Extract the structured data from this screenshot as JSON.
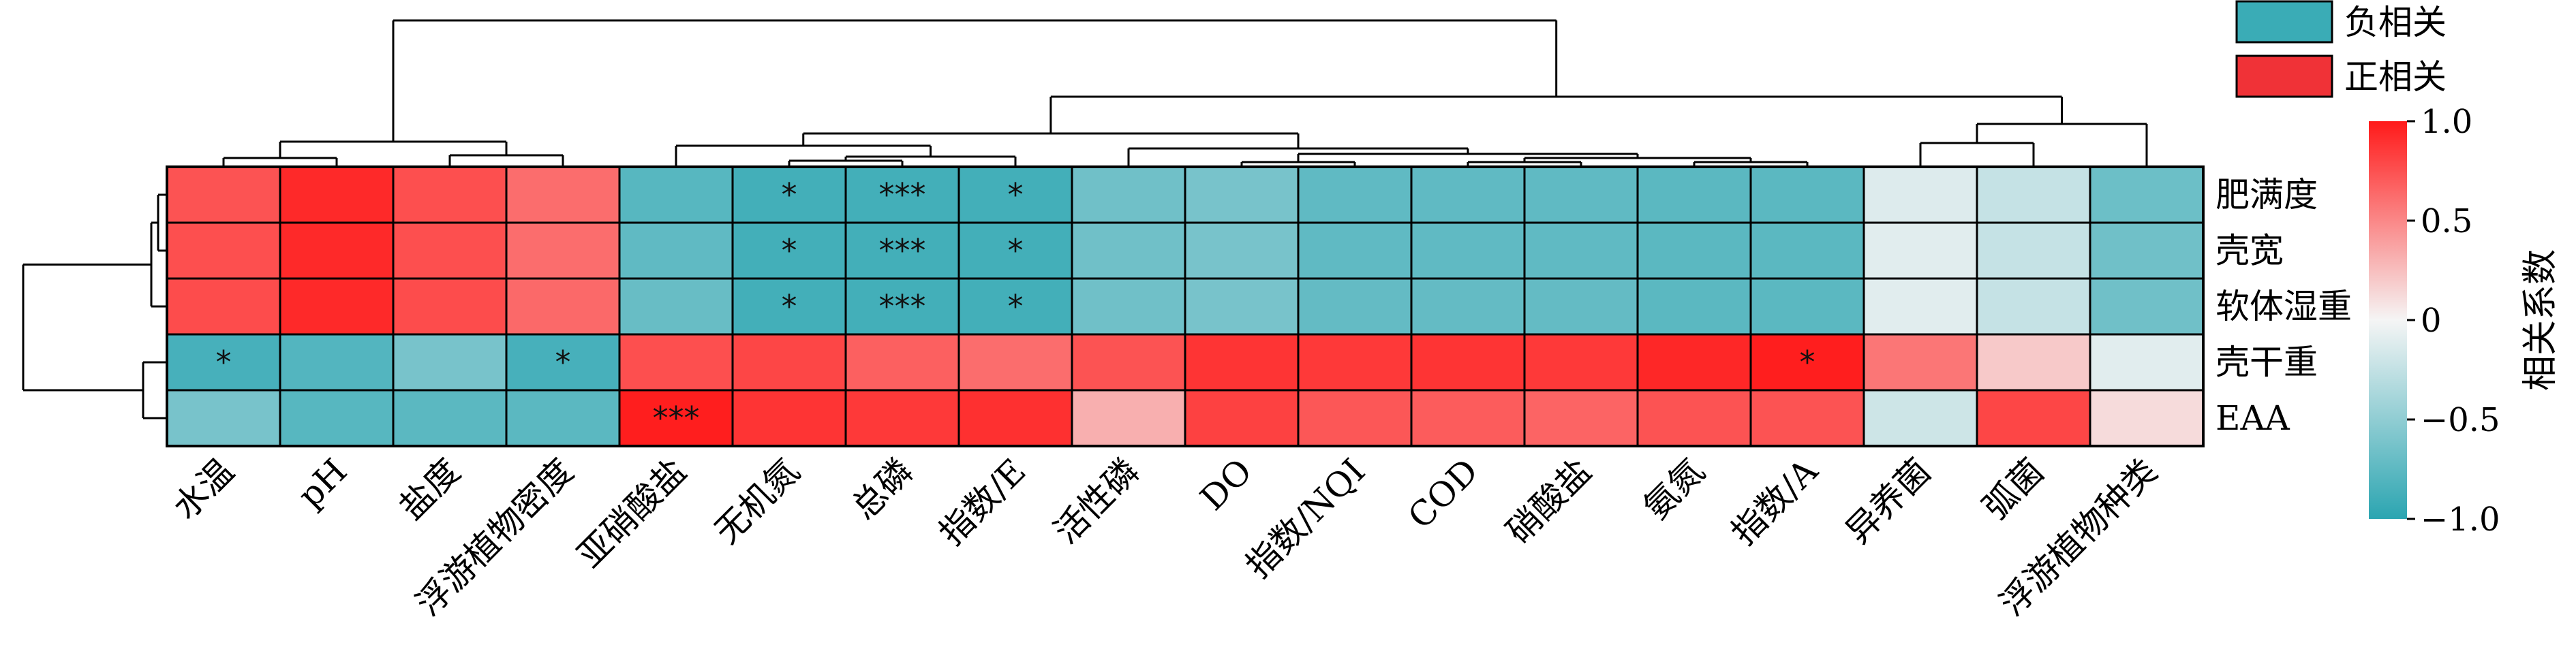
{
  "chart_data": {
    "type": "heatmap",
    "rows": [
      "肥满度",
      "壳宽",
      "软体湿重",
      "壳干重",
      "EAA"
    ],
    "columns": [
      "水温",
      "pH",
      "盐度",
      "浮游植物密度",
      "亚硝酸盐",
      "无机氮",
      "总磷",
      "指数/E",
      "活性磷",
      "DO",
      "指数/NQI",
      "COD",
      "硝酸盐",
      "氨氮",
      "指数/A",
      "异养菌",
      "弧菌",
      "浮游植物种类"
    ],
    "values": [
      [
        0.74,
        0.93,
        0.76,
        0.62,
        -0.78,
        -0.88,
        -0.88,
        -0.88,
        -0.66,
        -0.62,
        -0.74,
        -0.74,
        -0.74,
        -0.76,
        -0.76,
        -0.12,
        -0.24,
        -0.68
      ],
      [
        0.76,
        0.93,
        0.76,
        0.62,
        -0.74,
        -0.88,
        -0.88,
        -0.88,
        -0.66,
        -0.62,
        -0.74,
        -0.74,
        -0.74,
        -0.76,
        -0.76,
        -0.1,
        -0.24,
        -0.66
      ],
      [
        0.77,
        0.93,
        0.77,
        0.64,
        -0.7,
        -0.88,
        -0.88,
        -0.88,
        -0.66,
        -0.62,
        -0.72,
        -0.72,
        -0.72,
        -0.76,
        -0.76,
        -0.1,
        -0.24,
        -0.66
      ],
      [
        -0.86,
        -0.8,
        -0.62,
        -0.86,
        0.76,
        0.8,
        0.68,
        0.62,
        0.74,
        0.88,
        0.86,
        0.88,
        0.86,
        0.94,
        0.98,
        0.58,
        0.2,
        -0.1
      ],
      [
        -0.62,
        -0.78,
        -0.76,
        -0.76,
        0.98,
        0.88,
        0.86,
        0.9,
        0.32,
        0.82,
        0.72,
        0.7,
        0.66,
        0.74,
        0.74,
        -0.2,
        0.8,
        0.12
      ]
    ],
    "significance": [
      [
        "",
        "",
        "",
        "",
        "",
        "*",
        "***",
        "*",
        "",
        "",
        "",
        "",
        "",
        "",
        "",
        "",
        "",
        ""
      ],
      [
        "",
        "",
        "",
        "",
        "",
        "*",
        "***",
        "*",
        "",
        "",
        "",
        "",
        "",
        "",
        "",
        "",
        "",
        ""
      ],
      [
        "",
        "",
        "",
        "",
        "",
        "*",
        "***",
        "*",
        "",
        "",
        "",
        "",
        "",
        "",
        "",
        "",
        "",
        ""
      ],
      [
        "*",
        "",
        "",
        "*",
        "",
        "",
        "",
        "",
        "",
        "",
        "",
        "",
        "",
        "",
        "*",
        "",
        "",
        ""
      ],
      [
        "",
        "",
        "",
        "",
        "***",
        "",
        "",
        "",
        "",
        "",
        "",
        "",
        "",
        "",
        "",
        "",
        "",
        ""
      ]
    ],
    "legend": [
      {
        "label": "负相关",
        "color": "#3aacb6"
      },
      {
        "label": "正相关",
        "color": "#f03237"
      }
    ],
    "colorbar": {
      "title": "相关系数",
      "range": [
        -1.0,
        1.0
      ],
      "ticks": [
        "1.0",
        "0.5",
        "0",
        "−0.5",
        "−1.0"
      ],
      "tick_values": [
        1.0,
        0.5,
        0,
        -0.5,
        -1.0
      ],
      "low_color": "#2ba5b1",
      "mid_color": "#f5f5f5",
      "high_color": "#ff1a1a"
    }
  }
}
